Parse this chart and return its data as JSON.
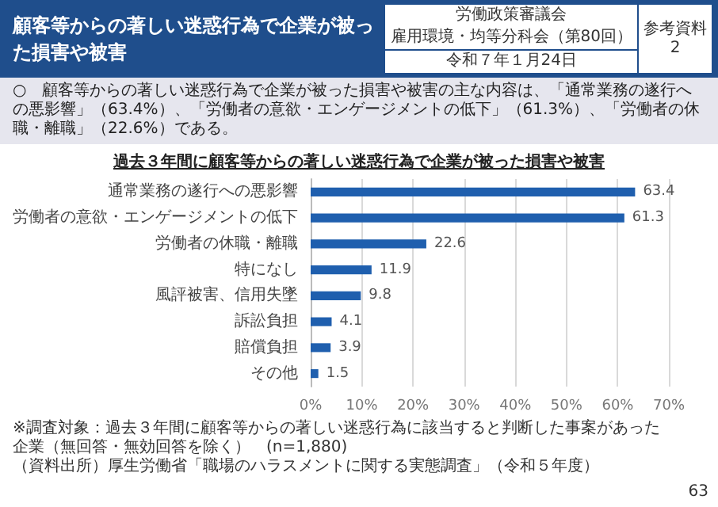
{
  "chart_data": {
    "type": "bar",
    "orientation": "horizontal",
    "title": "顧客等からの著しい迷惑行為で企業が被った損害や被害",
    "subtitle": "過去３年間に顧客等からの著しい迷惑行為で企業が被った損害や被害",
    "annotations": [
      "労働政策審議会",
      "雇用環境・均等分科会（第80回）",
      "令和７年１月24日",
      "参考資料\n2",
      "○　顧客等からの著しい迷惑行為で企業が被った損害や被害の主な内容は、「通常業務の遂行への悪影響」（63.4%）、「労働者の意欲・エンゲージメントの低下」（61.3%）、「労働者の休職・離職」（22.6%）である。",
      "※調査対象：過去３年間に顧客等からの著しい迷惑行為に該当すると判断した事案があった企業（無回答・無効回答を除く）　(n=1,880)",
      "（資料出所）厚生労働省「職場のハラスメントに関する実態調査」（令和５年度）",
      "63"
    ],
    "categories": [
      "通常業務の遂行への悪影響",
      "労働者の意欲・エンゲージメントの低下",
      "労働者の休職・離職",
      "特になし",
      "風評被害、信用失墜",
      "訴訟負担",
      "賠償負担",
      "その他"
    ],
    "values": [
      63.4,
      61.3,
      22.6,
      11.9,
      9.8,
      4.1,
      3.9,
      1.5
    ],
    "color": "#1f5fae",
    "data_labels": true,
    "xlim": [
      0,
      70
    ],
    "xticks": [
      {
        "value": 0,
        "label": "0%"
      },
      {
        "value": 10,
        "label": "10%"
      },
      {
        "value": 20,
        "label": "20%"
      },
      {
        "value": 30,
        "label": "30%"
      },
      {
        "value": 40,
        "label": "40%"
      },
      {
        "value": 50,
        "label": "50%"
      },
      {
        "value": 60,
        "label": "60%"
      },
      {
        "value": 70,
        "label": "70%"
      }
    ],
    "grid": "x"
  }
}
